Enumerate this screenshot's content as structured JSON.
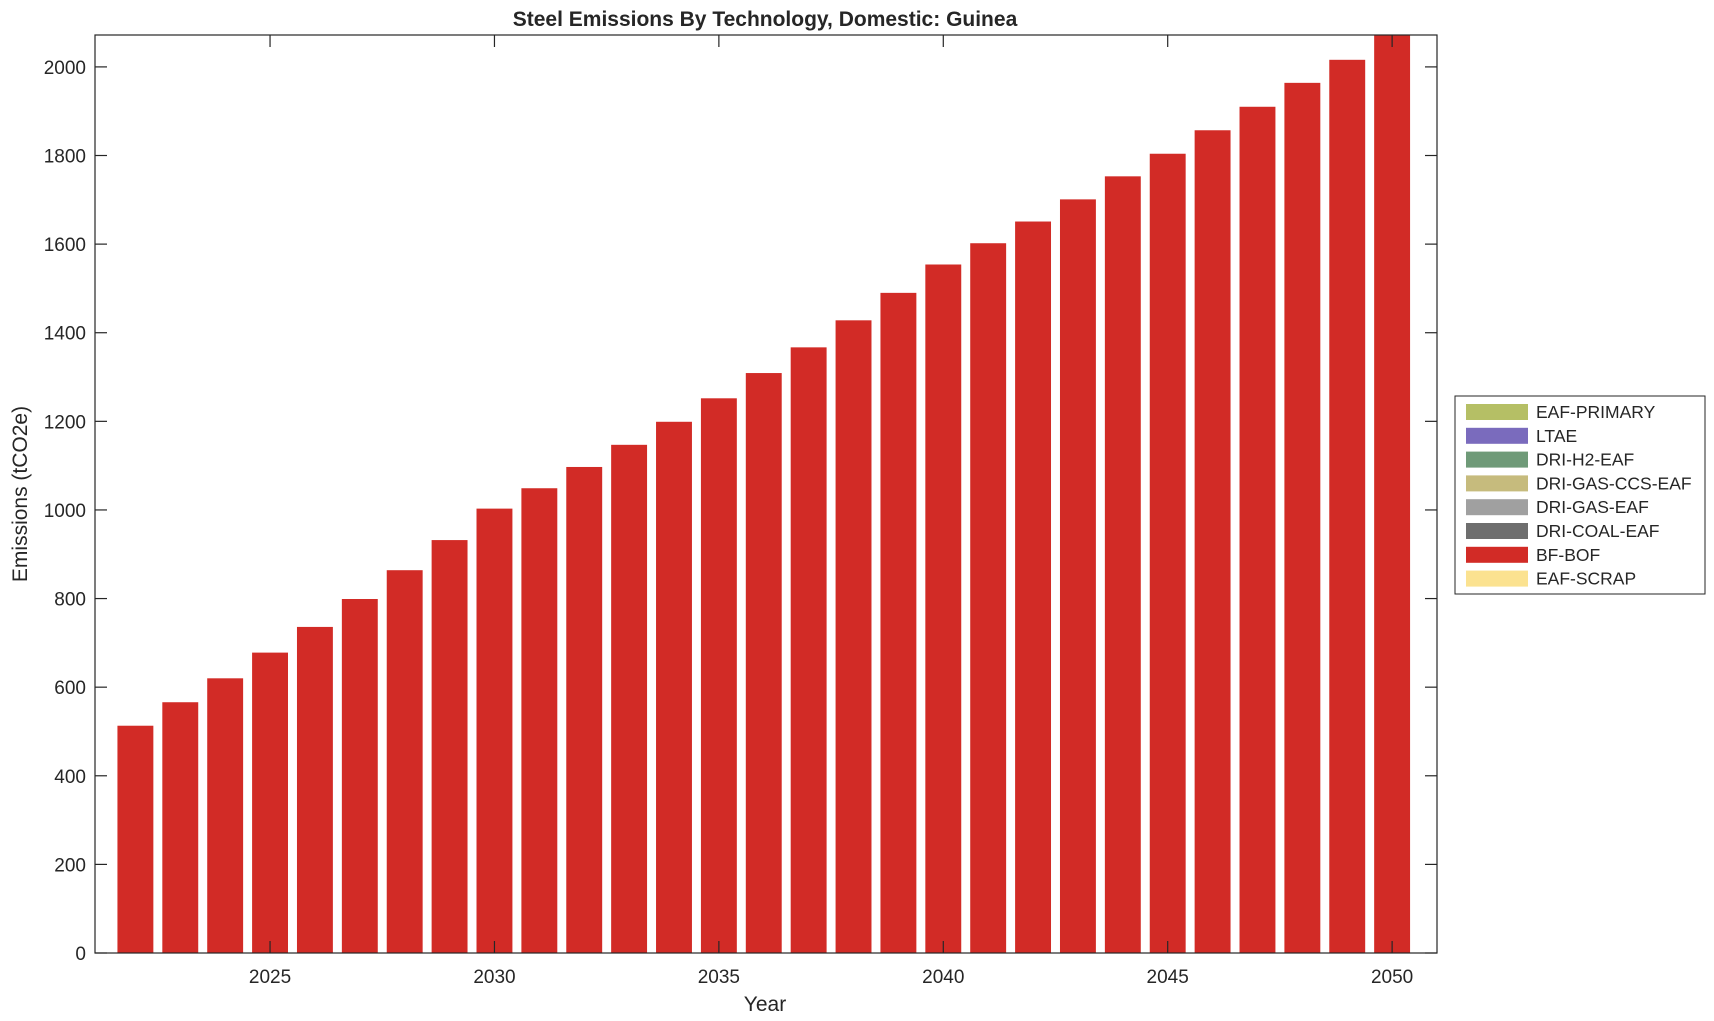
{
  "chart_data": {
    "type": "bar",
    "stacked": true,
    "title": "Steel Emissions By Technology, Domestic: Guinea",
    "xlabel": "Year",
    "ylabel": "Emissions (tCO2e)",
    "x": [
      2022,
      2023,
      2024,
      2025,
      2026,
      2027,
      2028,
      2029,
      2030,
      2031,
      2032,
      2033,
      2034,
      2035,
      2036,
      2037,
      2038,
      2039,
      2040,
      2041,
      2042,
      2043,
      2044,
      2045,
      2046,
      2047,
      2048,
      2049,
      2050
    ],
    "xlim": [
      2021.1,
      2051.0
    ],
    "ylim": [
      0,
      2072
    ],
    "xticks": [
      2025,
      2030,
      2035,
      2040,
      2045,
      2050
    ],
    "xtick_labels": [
      "2025",
      "2030",
      "2035",
      "2040",
      "2045",
      "2050"
    ],
    "yticks": [
      0,
      200,
      400,
      600,
      800,
      1000,
      1200,
      1400,
      1600,
      1800,
      2000
    ],
    "ytick_labels": [
      "0",
      "200",
      "400",
      "600",
      "800",
      "1000",
      "1200",
      "1400",
      "1600",
      "1800",
      "2000"
    ],
    "grid": false,
    "legend_position": "right-outside",
    "series": [
      {
        "name": "EAF-PRIMARY",
        "color": "#b5bf65",
        "values": [
          0,
          0,
          0,
          0,
          0,
          0,
          0,
          0,
          0,
          0,
          0,
          0,
          0,
          0,
          0,
          0,
          0,
          0,
          0,
          0,
          0,
          0,
          0,
          0,
          0,
          0,
          0,
          0,
          0
        ]
      },
      {
        "name": "LTAE",
        "color": "#7a6bbd",
        "values": [
          0,
          0,
          0,
          0,
          0,
          0,
          0,
          0,
          0,
          0,
          0,
          0,
          0,
          0,
          0,
          0,
          0,
          0,
          0,
          0,
          0,
          0,
          0,
          0,
          0,
          0,
          0,
          0,
          0
        ]
      },
      {
        "name": "DRI-H2-EAF",
        "color": "#6f9a78",
        "values": [
          0,
          0,
          0,
          0,
          0,
          0,
          0,
          0,
          0,
          0,
          0,
          0,
          0,
          0,
          0,
          0,
          0,
          0,
          0,
          0,
          0,
          0,
          0,
          0,
          0,
          0,
          0,
          0,
          0
        ]
      },
      {
        "name": "DRI-GAS-CCS-EAF",
        "color": "#c6bb7d",
        "values": [
          0,
          0,
          0,
          0,
          0,
          0,
          0,
          0,
          0,
          0,
          0,
          0,
          0,
          0,
          0,
          0,
          0,
          0,
          0,
          0,
          0,
          0,
          0,
          0,
          0,
          0,
          0,
          0,
          0
        ]
      },
      {
        "name": "DRI-GAS-EAF",
        "color": "#a0a0a0",
        "values": [
          0,
          0,
          0,
          0,
          0,
          0,
          0,
          0,
          0,
          0,
          0,
          0,
          0,
          0,
          0,
          0,
          0,
          0,
          0,
          0,
          0,
          0,
          0,
          0,
          0,
          0,
          0,
          0,
          0
        ]
      },
      {
        "name": "DRI-COAL-EAF",
        "color": "#6e6e6e",
        "values": [
          0,
          0,
          0,
          0,
          0,
          0,
          0,
          0,
          0,
          0,
          0,
          0,
          0,
          0,
          0,
          0,
          0,
          0,
          0,
          0,
          0,
          0,
          0,
          0,
          0,
          0,
          0,
          0,
          0
        ]
      },
      {
        "name": "BF-BOF",
        "color": "#d22b26",
        "values": [
          513,
          566,
          620,
          678,
          736,
          799,
          864,
          932,
          1003,
          1049,
          1097,
          1147,
          1199,
          1252,
          1309,
          1367,
          1428,
          1490,
          1554,
          1602,
          1651,
          1701,
          1753,
          1804,
          1857,
          1910,
          1964,
          2016,
          2072
        ]
      },
      {
        "name": "EAF-SCRAP",
        "color": "#fbe290",
        "values": [
          0,
          0,
          0,
          0,
          0,
          0,
          0,
          0,
          0,
          0,
          0,
          0,
          0,
          0,
          0,
          0,
          0,
          0,
          0,
          0,
          0,
          0,
          0,
          0,
          0,
          0,
          0,
          0,
          0
        ]
      }
    ]
  }
}
